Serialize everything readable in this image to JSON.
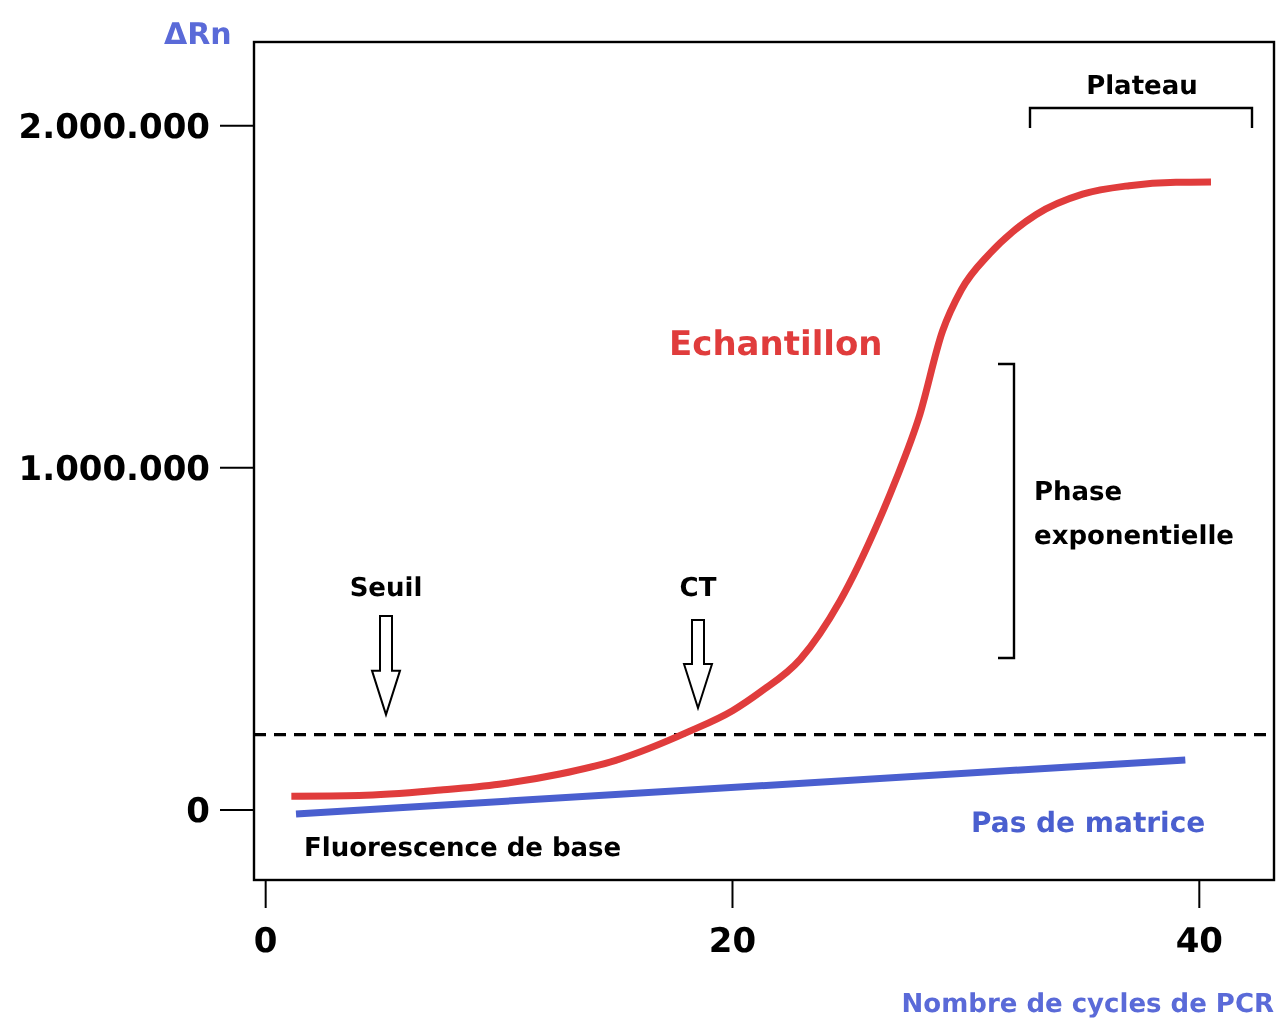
{
  "chart_data": {
    "type": "line",
    "xlabel": "Nombre de cycles de PCR",
    "ylabel": "ΔRn",
    "xlim": [
      -0.5,
      43.2
    ],
    "ylim": [
      -205000,
      2245000
    ],
    "xticks": [
      0,
      20,
      40
    ],
    "yticks": [
      {
        "value": 0,
        "label": "0"
      },
      {
        "value": 1000000,
        "label": "1.000.000"
      },
      {
        "value": 2000000,
        "label": "2.000.000"
      }
    ],
    "grid": false,
    "marker": "none",
    "line_style": "solid",
    "series": [
      {
        "name": "Echantillon",
        "color": "#e03c3c",
        "x": [
          1.1,
          4,
          7.5,
          10,
          12.6,
          15,
          18.1,
          20,
          21.2,
          22.9,
          24.6,
          26.3,
          27,
          28,
          29,
          29.8,
          31,
          32,
          33,
          35,
          37,
          39,
          40.5
        ],
        "values": [
          40000,
          42000,
          58000,
          75000,
          105000,
          145000,
          228000,
          290000,
          345000,
          440000,
          610000,
          850000,
          965000,
          1150000,
          1400000,
          1520000,
          1625000,
          1690000,
          1740000,
          1800000,
          1825000,
          1835000,
          1836000
        ]
      },
      {
        "name": "Pas de matrice",
        "color": "#4a5fcf",
        "x": [
          1.3,
          39.4
        ],
        "values": [
          -12000,
          146000
        ]
      }
    ],
    "ref_lines": [
      {
        "axis": "y",
        "value": 220000,
        "label": "Seuil",
        "color": "#000000",
        "line_style": "dashed"
      }
    ],
    "annotations": [
      "CT",
      "Plateau",
      "Phase exponentielle",
      "Fluorescence de base"
    ]
  }
}
